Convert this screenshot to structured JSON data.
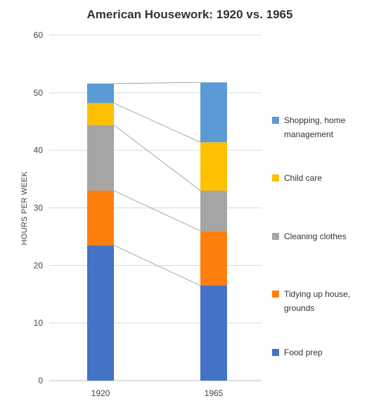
{
  "chart_data": {
    "type": "bar",
    "stacked": true,
    "title": "American Housework: 1920 vs. 1965",
    "ylabel": "HOURS PER WEEK",
    "xlabel": "",
    "categories": [
      "1920",
      "1965"
    ],
    "ylim": [
      0,
      60
    ],
    "yticks": [
      0,
      10,
      20,
      30,
      40,
      50,
      60
    ],
    "grid": true,
    "legend_position": "right",
    "connector_lines": true,
    "series": [
      {
        "name": "Food prep",
        "legend_lines": [
          "Food prep"
        ],
        "color": "#4472C4",
        "values": [
          23.5,
          16.5
        ]
      },
      {
        "name": "Tidying up house, grounds",
        "legend_lines": [
          "Tidying up house,",
          "grounds"
        ],
        "color": "#FF7F0E",
        "values": [
          9.5,
          9.5
        ]
      },
      {
        "name": "Cleaning clothes",
        "legend_lines": [
          "Cleaning clothes"
        ],
        "color": "#A5A5A5",
        "values": [
          11.4,
          7.0
        ]
      },
      {
        "name": "Child care",
        "legend_lines": [
          "Child care"
        ],
        "color": "#FFC000",
        "values": [
          3.8,
          8.4
        ]
      },
      {
        "name": "Shopping, home management",
        "legend_lines": [
          "Shopping, home",
          "management"
        ],
        "color": "#5B9BD5",
        "values": [
          3.4,
          10.4
        ]
      }
    ]
  }
}
